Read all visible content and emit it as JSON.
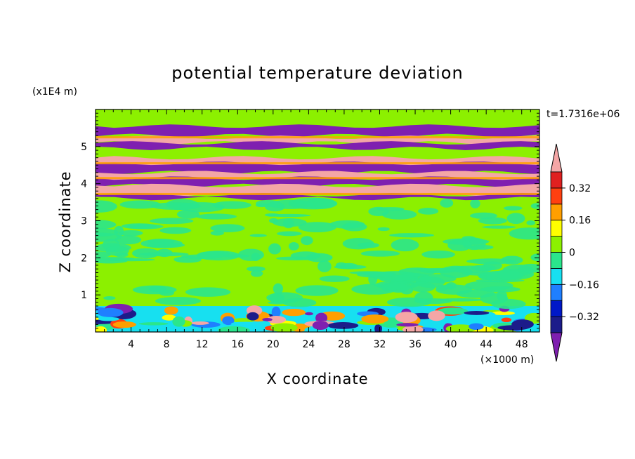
{
  "chart_data": {
    "type": "heatmap",
    "title": "potential temperature deviation",
    "xlabel": "X coordinate",
    "ylabel": "Z coordinate",
    "x_unit": "(×1000 m)",
    "y_unit": "(x1E4 m)",
    "time_label": "t=1.7316e+06",
    "xlim": [
      0,
      50
    ],
    "ylim": [
      0,
      6
    ],
    "x_ticks": [
      "4",
      "8",
      "12",
      "16",
      "20",
      "24",
      "28",
      "32",
      "36",
      "40",
      "44",
      "48"
    ],
    "x_tick_values": [
      4,
      8,
      12,
      16,
      20,
      24,
      28,
      32,
      36,
      40,
      44,
      48
    ],
    "y_ticks": [
      "1",
      "2",
      "3",
      "4",
      "5"
    ],
    "y_tick_values": [
      1,
      2,
      3,
      4,
      5
    ],
    "colorbar": {
      "levels": [
        -0.4,
        -0.32,
        -0.24,
        -0.16,
        -0.08,
        0,
        0.08,
        0.16,
        0.24,
        0.32,
        0.4
      ],
      "tick_labels": [
        "0.32",
        "0.16",
        "0",
        "−0.16",
        "−0.32"
      ],
      "tick_values": [
        0.32,
        0.16,
        0,
        -0.16,
        -0.32
      ],
      "colors": [
        "#7f1fb0",
        "#1c1c8a",
        "#0018c8",
        "#1f7fff",
        "#17e0f0",
        "#2ae68c",
        "#8cf000",
        "#ffff00",
        "#ff9f00",
        "#ff4010",
        "#e02020",
        "#f4a6a6"
      ]
    },
    "bands": [
      {
        "z0": 5.35,
        "z1": 5.95,
        "value": 0.05
      },
      {
        "z0": 5.3,
        "z1": 5.55,
        "value": -0.45
      },
      {
        "z0": 5.1,
        "z1": 5.25,
        "value": 0.45
      },
      {
        "z0": 4.95,
        "z1": 5.1,
        "value": -0.45
      },
      {
        "z0": 4.45,
        "z1": 4.7,
        "value": 0.45
      },
      {
        "z0": 4.3,
        "z1": 4.55,
        "value": -0.45
      },
      {
        "z0": 4.1,
        "z1": 4.3,
        "value": 0.45
      },
      {
        "z0": 3.95,
        "z1": 4.15,
        "value": -0.45
      },
      {
        "z0": 3.7,
        "z1": 3.95,
        "value": 0.45
      },
      {
        "z0": 3.6,
        "z1": 3.7,
        "value": -0.45
      },
      {
        "z0": 0.7,
        "z1": 3.6,
        "value": 0.03
      },
      {
        "z0": 0.0,
        "z1": 0.7,
        "value": -0.12
      }
    ]
  }
}
